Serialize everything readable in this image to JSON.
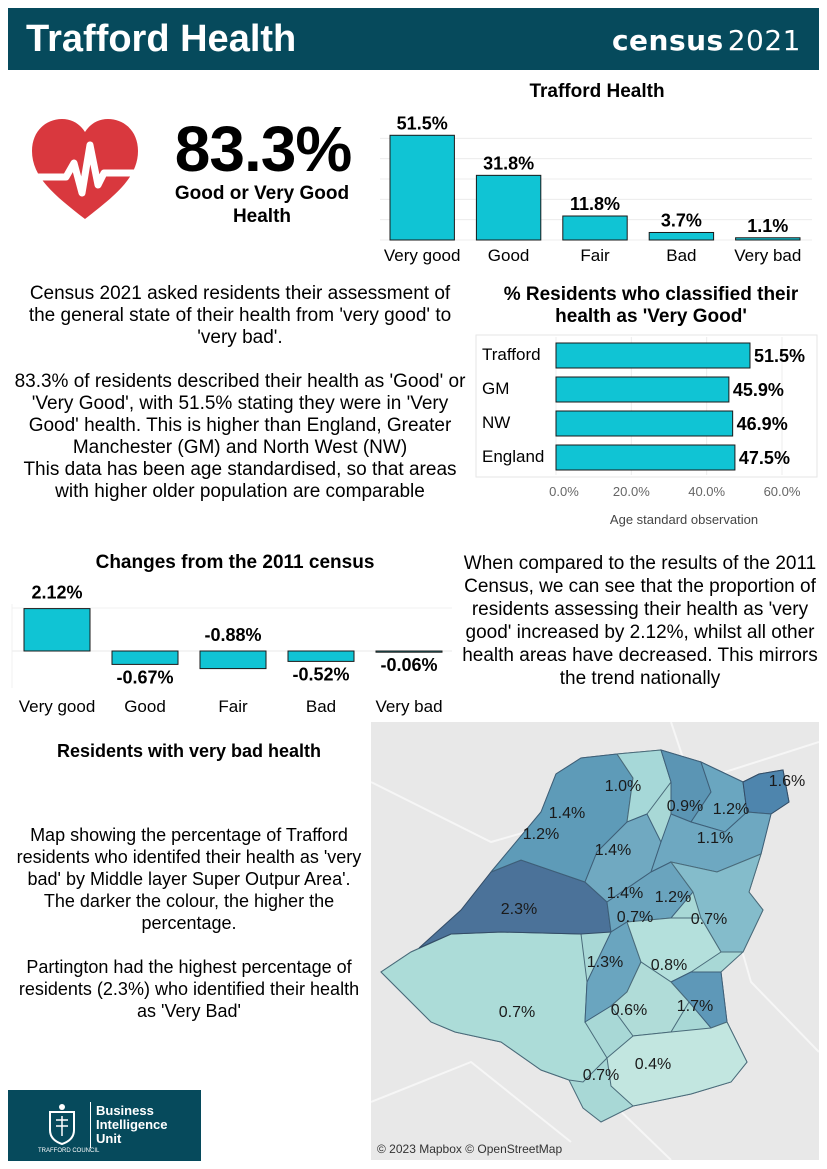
{
  "header": {
    "title": "Trafford Health",
    "logo_word": "census",
    "logo_year": "2021"
  },
  "headline": {
    "value": "83.3%",
    "label": "Good or Very Good Health"
  },
  "health_chart": {
    "title": "Trafford Health",
    "colors": {
      "bar": "#10c4d4",
      "outline": "#1a1a1a"
    }
  },
  "intro_text": "Census 2021 asked residents their assessment of the general state of their health from 'very good' to 'very bad'.\n\n 83.3% of residents described their health as 'Good' or 'Very Good', with 51.5% stating they were in 'Very Good' health. This is higher than England, Greater Manchester (GM) and North West (NW)\nThis data has been age standardised, so that areas with higher older population are comparable",
  "very_good_chart": {
    "title": "% Residents who classified their health as 'Very Good'"
  },
  "changes_chart": {
    "title": "Changes from the 2011 census"
  },
  "changes_text": "When compared to the results of the 2011 Census, we can see that the proportion of residents assessing their health as 'very good' increased by 2.12%, whilst all other health areas have decreased. This mirrors the trend nationally",
  "map_section": {
    "title": "Residents with very bad health",
    "text": "Map showing the percentage of Trafford residents who identifed their health as 'very bad' by Middle layer Super Outpur Area'.\nThe darker the colour, the higher the percentage.\n\nPartington had the highest percentage of residents (2.3%) who identified their health as 'Very Bad'",
    "credit": "© 2023 Mapbox © OpenStreetMap",
    "labels": [
      "1.6%",
      "1.0%",
      "0.9%",
      "1.2%",
      "1.4%",
      "1.2%",
      "1.4%",
      "1.1%",
      "2.3%",
      "1.4%",
      "1.2%",
      "0.7%",
      "0.7%",
      "1.3%",
      "0.8%",
      "0.7%",
      "0.6%",
      "1.7%",
      "0.4%",
      "0.7%"
    ]
  },
  "footer_logo": {
    "text": "Business\nIntelligence\nUnit",
    "council": "TRAFFORD COUNCIL"
  },
  "chart_data": [
    {
      "type": "bar",
      "title": "Trafford Health",
      "categories": [
        "Very good",
        "Good",
        "Fair",
        "Bad",
        "Very bad"
      ],
      "values": [
        51.5,
        31.8,
        11.8,
        3.7,
        1.1
      ],
      "data_labels": [
        "51.5%",
        "31.8%",
        "11.8%",
        "3.7%",
        "1.1%"
      ],
      "ylim": [
        0,
        60
      ],
      "grid": true
    },
    {
      "type": "bar",
      "orientation": "horizontal",
      "title": "% Residents who classified their health as 'Very Good'",
      "categories": [
        "Trafford",
        "GM",
        "NW",
        "England"
      ],
      "values": [
        51.5,
        45.9,
        46.9,
        47.5
      ],
      "data_labels": [
        "51.5%",
        "45.9%",
        "46.9%",
        "47.5%"
      ],
      "xlim": [
        0,
        60
      ],
      "xticks": [
        "0.0%",
        "20.0%",
        "40.0%",
        "60.0%"
      ],
      "xlabel": "Age standard observation",
      "grid": true
    },
    {
      "type": "bar",
      "title": "Changes from the 2011 census",
      "categories": [
        "Very good",
        "Good",
        "Fair",
        "Bad",
        "Very bad"
      ],
      "values": [
        2.12,
        -0.67,
        -0.88,
        -0.52,
        -0.06
      ],
      "data_labels": [
        "2.12%",
        "-0.67%",
        "-0.88%",
        "-0.52%",
        "-0.06%"
      ],
      "ylim": [
        -1,
        2.5
      ]
    }
  ]
}
